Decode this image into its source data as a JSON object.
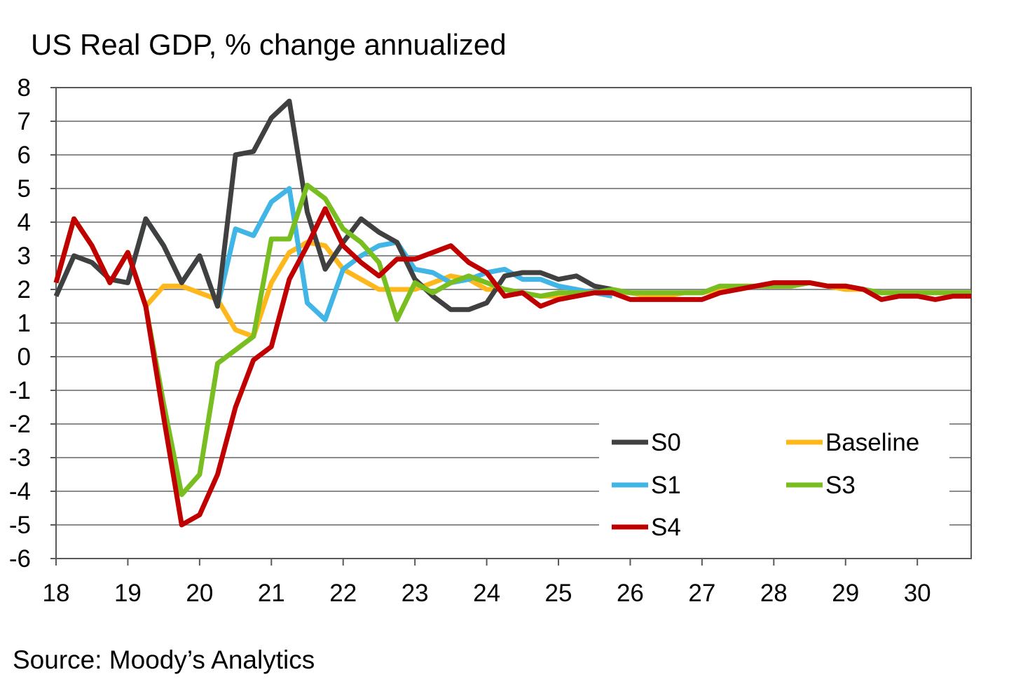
{
  "chart_data": {
    "type": "line",
    "title": "US Real GDP, % change annualized",
    "source": "Source: Moody’s Analytics",
    "xlabel": "",
    "ylabel": "",
    "xlim": [
      18,
      30.75
    ],
    "ylim": [
      -6,
      8
    ],
    "x_ticks": [
      "18",
      "19",
      "20",
      "21",
      "22",
      "23",
      "24",
      "25",
      "26",
      "27",
      "28",
      "29",
      "30"
    ],
    "y_ticks": [
      "8",
      "7",
      "6",
      "5",
      "4",
      "3",
      "2",
      "1",
      "0",
      "-1",
      "-2",
      "-3",
      "-4",
      "-5",
      "-6"
    ],
    "grid": true,
    "legend_position": "bottom-right",
    "series": [
      {
        "name": "Baseline",
        "color": "#FFB81C",
        "x": [
          18,
          18.25,
          18.5,
          18.75,
          19,
          19.25,
          19.5,
          19.75,
          20,
          20.25,
          20.5,
          20.75,
          21,
          21.25,
          21.5,
          21.75,
          22,
          22.25,
          22.5,
          22.75,
          23,
          23.25,
          23.5,
          23.75,
          24,
          24.25,
          24.5,
          24.75,
          25,
          25.25,
          25.5,
          25.75,
          26,
          26.25,
          26.5,
          26.75,
          27,
          27.25,
          27.5,
          27.75,
          28,
          28.25,
          28.5,
          28.75,
          29,
          29.25,
          29.5,
          29.75,
          30,
          30.25,
          30.5,
          30.75
        ],
        "values": [
          2.2,
          4.1,
          3.3,
          2.2,
          3.1,
          1.5,
          2.1,
          2.1,
          1.9,
          1.7,
          0.8,
          0.6,
          2.2,
          3.1,
          3.4,
          3.3,
          2.6,
          2.3,
          2.0,
          2.0,
          2.0,
          2.2,
          2.4,
          2.3,
          2.0,
          2.0,
          1.9,
          1.8,
          1.8,
          1.9,
          1.9,
          1.9,
          1.9,
          1.8,
          1.8,
          1.9,
          1.9,
          2.0,
          2.0,
          2.1,
          2.1,
          2.1,
          2.2,
          2.1,
          2.0,
          2.0,
          1.9,
          1.9,
          1.9,
          1.9,
          1.9,
          1.9
        ]
      },
      {
        "name": "S1",
        "color": "#41B6E6",
        "x": [
          18,
          18.25,
          18.5,
          18.75,
          19,
          19.25,
          19.5,
          19.75,
          20,
          20.25,
          20.5,
          20.75,
          21,
          21.25,
          21.5,
          21.75,
          22,
          22.25,
          22.5,
          22.75,
          23,
          23.25,
          23.5,
          23.75,
          24,
          24.25,
          24.5,
          24.75,
          25,
          25.25,
          25.5,
          25.75
        ],
        "values": [
          1.8,
          3.0,
          2.8,
          2.3,
          2.2,
          4.1,
          3.3,
          2.2,
          3.0,
          1.5,
          3.8,
          3.6,
          4.6,
          5.0,
          1.6,
          1.1,
          2.6,
          3.0,
          3.3,
          3.4,
          2.6,
          2.5,
          2.2,
          2.3,
          2.5,
          2.6,
          2.3,
          2.3,
          2.1,
          2.0,
          1.9,
          1.8
        ]
      },
      {
        "name": "S0",
        "color": "#404040",
        "x": [
          18,
          18.25,
          18.5,
          18.75,
          19,
          19.25,
          19.5,
          19.75,
          20,
          20.25,
          20.5,
          20.75,
          21,
          21.25,
          21.5,
          21.75,
          22,
          22.25,
          22.5,
          22.75,
          23,
          23.25,
          23.5,
          23.75,
          24,
          24.25,
          24.5,
          24.75,
          25,
          25.25,
          25.5,
          25.75
        ],
        "values": [
          1.8,
          3.0,
          2.8,
          2.3,
          2.2,
          4.1,
          3.3,
          2.2,
          3.0,
          1.5,
          6.0,
          6.1,
          7.1,
          7.6,
          4.3,
          2.6,
          3.4,
          4.1,
          3.7,
          3.4,
          2.3,
          1.8,
          1.4,
          1.4,
          1.6,
          2.4,
          2.5,
          2.5,
          2.3,
          2.4,
          2.1,
          2.0
        ]
      },
      {
        "name": "S3",
        "color": "#78BE20",
        "x": [
          18,
          18.25,
          18.5,
          18.75,
          19,
          19.25,
          19.5,
          19.75,
          20,
          20.25,
          20.5,
          20.75,
          21,
          21.25,
          21.5,
          21.75,
          22,
          22.25,
          22.5,
          22.75,
          23,
          23.25,
          23.5,
          23.75,
          24,
          24.25,
          24.5,
          24.75,
          25,
          25.25,
          25.5,
          25.75,
          26,
          26.25,
          26.5,
          26.75,
          27,
          27.25,
          27.5,
          27.75,
          28,
          28.25,
          28.5,
          28.75,
          29,
          29.25,
          29.5,
          29.75,
          30,
          30.25,
          30.5,
          30.75
        ],
        "values": [
          2.2,
          4.1,
          3.3,
          2.2,
          3.1,
          1.5,
          -1.4,
          -4.1,
          -3.5,
          -0.2,
          0.2,
          0.6,
          3.5,
          3.5,
          5.1,
          4.7,
          3.8,
          3.4,
          2.8,
          1.1,
          2.2,
          1.9,
          2.2,
          2.4,
          2.2,
          2.0,
          1.9,
          1.8,
          1.9,
          1.9,
          1.9,
          2.0,
          1.9,
          1.9,
          1.9,
          1.9,
          1.9,
          2.1,
          2.1,
          2.1,
          2.1,
          2.1,
          2.2,
          2.1,
          2.1,
          2.0,
          1.9,
          1.9,
          1.9,
          1.9,
          1.9,
          1.9
        ]
      },
      {
        "name": "S4",
        "color": "#C00000",
        "x": [
          18,
          18.25,
          18.5,
          18.75,
          19,
          19.25,
          19.5,
          19.75,
          20,
          20.25,
          20.5,
          20.75,
          21,
          21.25,
          21.5,
          21.75,
          22,
          22.25,
          22.5,
          22.75,
          23,
          23.25,
          23.5,
          23.75,
          24,
          24.25,
          24.5,
          24.75,
          25,
          25.25,
          25.5,
          25.75,
          26,
          26.25,
          26.5,
          26.75,
          27,
          27.25,
          27.5,
          27.75,
          28,
          28.25,
          28.5,
          28.75,
          29,
          29.25,
          29.5,
          29.75,
          30,
          30.25,
          30.5,
          30.75
        ],
        "values": [
          2.2,
          4.1,
          3.3,
          2.2,
          3.1,
          1.5,
          -1.8,
          -5.0,
          -4.7,
          -3.5,
          -1.5,
          -0.1,
          0.3,
          2.3,
          3.3,
          4.4,
          3.3,
          2.8,
          2.4,
          2.9,
          2.9,
          3.1,
          3.3,
          2.8,
          2.5,
          1.8,
          1.9,
          1.5,
          1.7,
          1.8,
          1.9,
          1.9,
          1.7,
          1.7,
          1.7,
          1.7,
          1.7,
          1.9,
          2.0,
          2.1,
          2.2,
          2.2,
          2.2,
          2.1,
          2.1,
          2.0,
          1.7,
          1.8,
          1.8,
          1.7,
          1.8,
          1.8
        ]
      }
    ],
    "legend": [
      {
        "label": "S0",
        "color": "#404040"
      },
      {
        "label": "Baseline",
        "color": "#FFB81C"
      },
      {
        "label": "S1",
        "color": "#41B6E6"
      },
      {
        "label": "S3",
        "color": "#78BE20"
      },
      {
        "label": "S4",
        "color": "#C00000"
      }
    ]
  }
}
